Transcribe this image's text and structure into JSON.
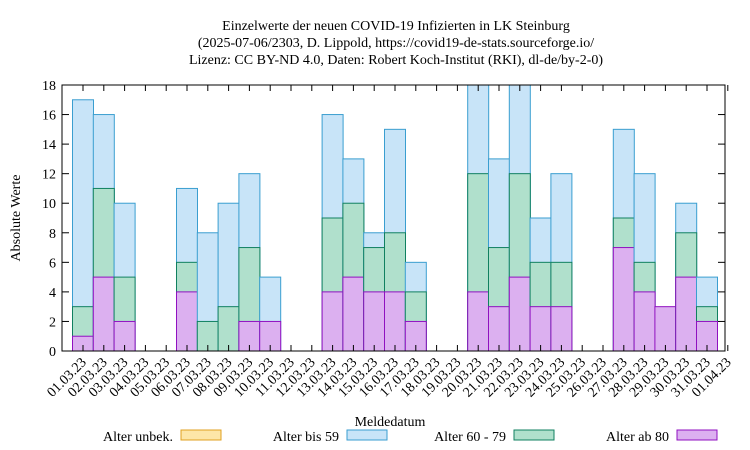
{
  "chart_data": {
    "type": "bar",
    "stacked": true,
    "title_lines": [
      "Einzelwerte der neuen COVID-19 Infizierten in LK Steinburg",
      "(2025-07-06/2303, D. Lippold, https://covid19-de-stats.sourceforge.io/",
      "Lizenz: CC BY-ND 4.0, Daten: Robert Koch-Institut (RKI), dl-de/by-2-0)"
    ],
    "xlabel": "Meldedatum",
    "ylabel": "Absolute Werte",
    "ylim": [
      0,
      18
    ],
    "yticks": [
      0,
      2,
      4,
      6,
      8,
      10,
      12,
      14,
      16,
      18
    ],
    "categories": [
      "01.03.23",
      "02.03.23",
      "03.03.23",
      "04.03.23",
      "05.03.23",
      "06.03.23",
      "07.03.23",
      "08.03.23",
      "09.03.23",
      "10.03.23",
      "11.03.23",
      "12.03.23",
      "13.03.23",
      "14.03.23",
      "15.03.23",
      "16.03.23",
      "17.03.23",
      "18.03.23",
      "19.03.23",
      "20.03.23",
      "21.03.23",
      "22.03.23",
      "23.03.23",
      "24.03.23",
      "25.03.23",
      "26.03.23",
      "27.03.23",
      "28.03.23",
      "29.03.23",
      "30.03.23",
      "31.03.23",
      "01.04.23"
    ],
    "series": [
      {
        "name": "Alter unbek.",
        "fill": "#fde6a8",
        "stroke": "#e0a020",
        "values": [
          0,
          0,
          0,
          0,
          0,
          0,
          0,
          0,
          0,
          0,
          0,
          0,
          0,
          0,
          0,
          0,
          0,
          0,
          0,
          0,
          0,
          0,
          0,
          0,
          0,
          0,
          0,
          0,
          0,
          0,
          0,
          0
        ]
      },
      {
        "name": "Alter bis 59",
        "fill": "#c8e4f8",
        "stroke": "#3a9ed0",
        "values": [
          14,
          5,
          5,
          0,
          0,
          5,
          6,
          7,
          5,
          3,
          0,
          0,
          7,
          3,
          1,
          7,
          2,
          0,
          0,
          6,
          6,
          6,
          3,
          6,
          0,
          0,
          6,
          6,
          0,
          2,
          2,
          0
        ]
      },
      {
        "name": "Alter 60 - 79",
        "fill": "#b0e0cc",
        "stroke": "#108060",
        "values": [
          2,
          6,
          3,
          0,
          0,
          2,
          2,
          3,
          5,
          0,
          0,
          0,
          5,
          5,
          3,
          4,
          2,
          0,
          0,
          8,
          4,
          7,
          3,
          3,
          0,
          0,
          2,
          2,
          0,
          3,
          1,
          0
        ]
      },
      {
        "name": "Alter ab 80",
        "fill": "#dcb0f0",
        "stroke": "#9010c0",
        "values": [
          1,
          5,
          2,
          0,
          0,
          4,
          0,
          0,
          2,
          2,
          0,
          0,
          4,
          5,
          4,
          4,
          2,
          0,
          0,
          4,
          3,
          5,
          3,
          3,
          0,
          0,
          7,
          4,
          3,
          5,
          2,
          0
        ]
      }
    ],
    "legend_position": "bottom"
  }
}
